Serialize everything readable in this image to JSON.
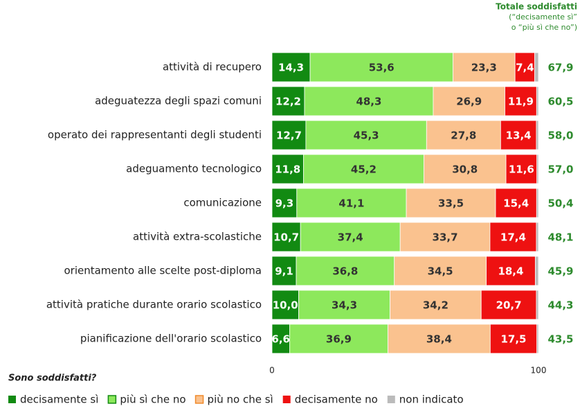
{
  "chart_data": {
    "type": "stacked-bar-horizontal",
    "categories": [
      "attività di recupero",
      "adeguatezza degli spazi comuni",
      "operato dei rappresentanti degli studenti",
      "adeguamento tecnologico",
      "comunicazione",
      "attività extra-scolastiche",
      "orientamento alle scelte post-diploma",
      "attività pratiche durante orario scolastico",
      "pianificazione dell'orario scolastico"
    ],
    "series": [
      {
        "name": "decisamente sì",
        "color": "#128a12",
        "label_color": "#ffffff",
        "values": [
          14.3,
          12.2,
          12.7,
          11.8,
          9.3,
          10.7,
          9.1,
          10.0,
          6.6
        ],
        "value_labels": [
          "14,3",
          "12,2",
          "12,7",
          "11,8",
          "9,3",
          "10,7",
          "9,1",
          "10,0",
          "6,6"
        ]
      },
      {
        "name": "più sì che no",
        "color": "#8de85c",
        "label_color": "#333333",
        "values": [
          53.6,
          48.3,
          45.3,
          45.2,
          41.1,
          37.4,
          36.8,
          34.3,
          36.9
        ],
        "value_labels": [
          "53,6",
          "48,3",
          "45,3",
          "45,2",
          "41,1",
          "37,4",
          "36,8",
          "34,3",
          "36,9"
        ]
      },
      {
        "name": "più no che sì",
        "color": "#fac28f",
        "label_color": "#333333",
        "values": [
          23.3,
          26.9,
          27.8,
          30.8,
          33.5,
          33.7,
          34.5,
          34.2,
          38.4
        ],
        "value_labels": [
          "23,3",
          "26,9",
          "27,8",
          "30,8",
          "33,5",
          "33,7",
          "34,5",
          "34,2",
          "38,4"
        ]
      },
      {
        "name": "decisamente no",
        "color": "#ee1111",
        "label_color": "#ffffff",
        "values": [
          7.4,
          11.9,
          13.4,
          11.6,
          15.4,
          17.4,
          18.4,
          20.7,
          17.5
        ],
        "value_labels": [
          "7,4",
          "11,9",
          "13,4",
          "11,6",
          "15,4",
          "17,4",
          "18,4",
          "20,7",
          "17,5"
        ]
      },
      {
        "name": "non indicato",
        "color": "#bbbbbb",
        "values": [
          1.4,
          0.7,
          0.8,
          0.6,
          0.7,
          0.8,
          1.2,
          0.8,
          0.6
        ]
      }
    ],
    "totals": {
      "title": "Totale soddisfatti",
      "subtitle": [
        "(“decisamente sì”",
        "o “più sì che no”)"
      ],
      "color": "#2e8b2e",
      "values": [
        67.9,
        60.5,
        58.0,
        57.0,
        50.4,
        48.1,
        45.9,
        44.3,
        43.5
      ],
      "value_labels": [
        "67,9",
        "60,5",
        "58,0",
        "57,0",
        "50,4",
        "48,1",
        "45,9",
        "44,3",
        "43,5"
      ]
    },
    "annotation": "Sono soddisfatti?",
    "xlim": [
      0,
      100
    ],
    "xticks": [
      0,
      100
    ]
  }
}
